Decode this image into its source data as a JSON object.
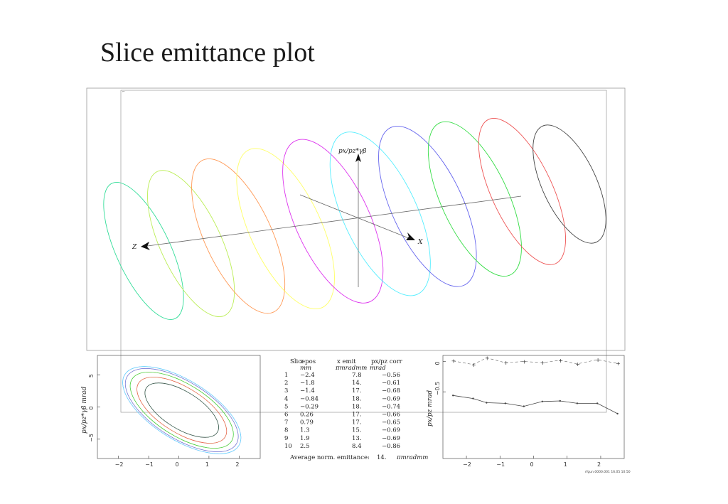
{
  "slide": {
    "title": "Slice emittance plot"
  },
  "chart_data": [
    {
      "type": "ellipse-3d",
      "axes": {
        "x": "X",
        "y": "px/pz*γβ",
        "z": "Z"
      },
      "slices": [
        {
          "slice": 1,
          "color": "#33dd99"
        },
        {
          "slice": 2,
          "color": "#bbee55"
        },
        {
          "slice": 3,
          "color": "#ff9955"
        },
        {
          "slice": 4,
          "color": "#ffff66"
        },
        {
          "slice": 5,
          "color": "#dd33ee"
        },
        {
          "slice": 6,
          "color": "#55eeff"
        },
        {
          "slice": 7,
          "color": "#6666ee"
        },
        {
          "slice": 8,
          "color": "#33dd44"
        },
        {
          "slice": 9,
          "color": "#ee5555"
        },
        {
          "slice": 10,
          "color": "#444444"
        }
      ]
    },
    {
      "type": "ellipse-overlay",
      "xlabel": "",
      "ylabel": "px/pz*γβ mrad",
      "xlim": [
        -2.7,
        2.7
      ],
      "ylim": [
        -8,
        8
      ],
      "xticks": [
        "−2",
        "−1",
        "0",
        "1",
        "2"
      ],
      "yticks": [
        "5",
        "0",
        "−5"
      ]
    },
    {
      "type": "table",
      "columns": [
        {
          "name": "Slice",
          "unit": ""
        },
        {
          "name": "z pos",
          "unit": "mm"
        },
        {
          "name": "x emit",
          "unit": "πmradmm"
        },
        {
          "name": "px/pz corr",
          "unit": "mrad"
        }
      ],
      "rows": [
        [
          "1",
          "−2.4",
          "7.8",
          "−0.56"
        ],
        [
          "2",
          "−1.8",
          "14.",
          "−0.61"
        ],
        [
          "3",
          "−1.4",
          "17.",
          "−0.68"
        ],
        [
          "4",
          "−0.84",
          "18.",
          "−0.69"
        ],
        [
          "5",
          "−0.29",
          "18.",
          "−0.74"
        ],
        [
          "6",
          "0.26",
          "17.",
          "−0.66"
        ],
        [
          "7",
          "0.79",
          "17.",
          "−0.65"
        ],
        [
          "8",
          "1.3",
          "15.",
          "−0.69"
        ],
        [
          "9",
          "1.9",
          "13.",
          "−0.69"
        ],
        [
          "10",
          "2.5",
          "8.4",
          "−0.86"
        ]
      ],
      "footer_label": "Average norm. emittance:",
      "footer_value": "14.",
      "footer_unit": "πmradmm"
    },
    {
      "type": "line",
      "ylabel": "px/pz mrad",
      "xlim": [
        -2.7,
        2.7
      ],
      "ylim": [
        -1.6,
        0.1
      ],
      "xticks": [
        "−2",
        "−1",
        "0",
        "1",
        "2"
      ],
      "yticks": [
        "0",
        "−0.5"
      ],
      "x": [
        -2.4,
        -1.8,
        -1.4,
        -0.84,
        -0.29,
        0.26,
        0.79,
        1.3,
        1.9,
        2.5
      ],
      "series": [
        {
          "values": [
            -0.56,
            -0.61,
            -0.68,
            -0.69,
            -0.74,
            -0.66,
            -0.65,
            -0.69,
            -0.69,
            -0.86
          ]
        }
      ],
      "dashed_values": [
        0.01,
        -0.05,
        0.06,
        -0.02,
        0.0,
        -0.02,
        0.02,
        -0.04,
        0.03,
        -0.03
      ]
    }
  ],
  "footer_stamp": "rfgun.0000.001   16.05   10:50"
}
